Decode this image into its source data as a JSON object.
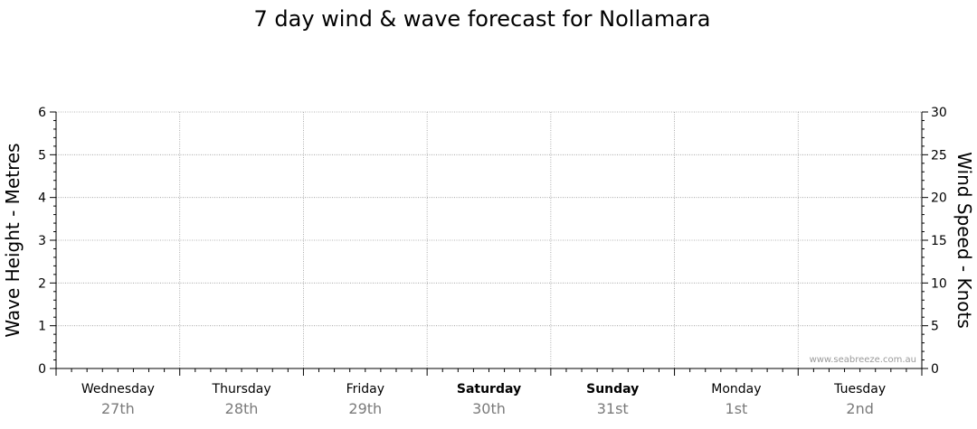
{
  "chart_data": {
    "type": "line",
    "title": "7 day wind & wave forecast for Nollamara",
    "ylabel_left": "Wave Height - Metres",
    "ylabel_right": "Wind Speed - Knots",
    "y_left_lim": [
      0,
      6
    ],
    "y_left_ticks": [
      "0",
      "1",
      "2",
      "3",
      "4",
      "5",
      "6"
    ],
    "y_right_lim": [
      0,
      30
    ],
    "y_right_ticks": [
      "0",
      "5",
      "10",
      "15",
      "20",
      "25",
      "30"
    ],
    "grid": true,
    "days": [
      {
        "name": "Wednesday",
        "date": "27th",
        "weekend": false
      },
      {
        "name": "Thursday",
        "date": "28th",
        "weekend": false
      },
      {
        "name": "Friday",
        "date": "29th",
        "weekend": false
      },
      {
        "name": "Saturday",
        "date": "30th",
        "weekend": true
      },
      {
        "name": "Sunday",
        "date": "31st",
        "weekend": true
      },
      {
        "name": "Monday",
        "date": "1st",
        "weekend": false
      },
      {
        "name": "Tuesday",
        "date": "2nd",
        "weekend": false
      }
    ],
    "series": []
  },
  "watermark": "www.seabreeze.com.au",
  "colors": {
    "axis": "#000000",
    "grid": "#9a9a9a",
    "date_text": "#7a7a7a",
    "watermark_text": "#9a9a9a"
  }
}
